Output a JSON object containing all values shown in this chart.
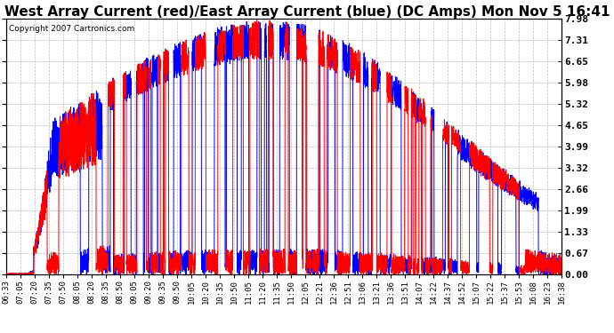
{
  "title": "West Array Current (red)/East Array Current (blue) (DC Amps) Mon Nov 5 16:41",
  "copyright": "Copyright 2007 Cartronics.com",
  "yticks": [
    0.0,
    0.67,
    1.33,
    1.99,
    2.66,
    3.32,
    3.99,
    4.65,
    5.32,
    5.98,
    6.65,
    7.31,
    7.98
  ],
  "ymin": 0.0,
  "ymax": 7.98,
  "xtick_labels": [
    "06:33",
    "07:05",
    "07:20",
    "07:35",
    "07:50",
    "08:05",
    "08:20",
    "08:35",
    "08:50",
    "09:05",
    "09:20",
    "09:35",
    "09:50",
    "10:05",
    "10:20",
    "10:35",
    "10:50",
    "11:05",
    "11:20",
    "11:35",
    "11:50",
    "12:05",
    "12:21",
    "12:36",
    "12:51",
    "13:06",
    "13:21",
    "13:36",
    "13:51",
    "14:07",
    "14:22",
    "14:37",
    "14:52",
    "15:07",
    "15:22",
    "15:37",
    "15:53",
    "16:08",
    "16:23",
    "16:38"
  ],
  "background_color": "#ffffff",
  "plot_background": "#ffffff",
  "grid_color": "#aaaaaa",
  "title_fontsize": 11,
  "copyright_fontsize": 6.5,
  "tick_fontsize": 6.5,
  "ytick_fontsize": 8,
  "line_color_red": "#ff0000",
  "line_color_blue": "#0000ff",
  "line_width": 0.7
}
